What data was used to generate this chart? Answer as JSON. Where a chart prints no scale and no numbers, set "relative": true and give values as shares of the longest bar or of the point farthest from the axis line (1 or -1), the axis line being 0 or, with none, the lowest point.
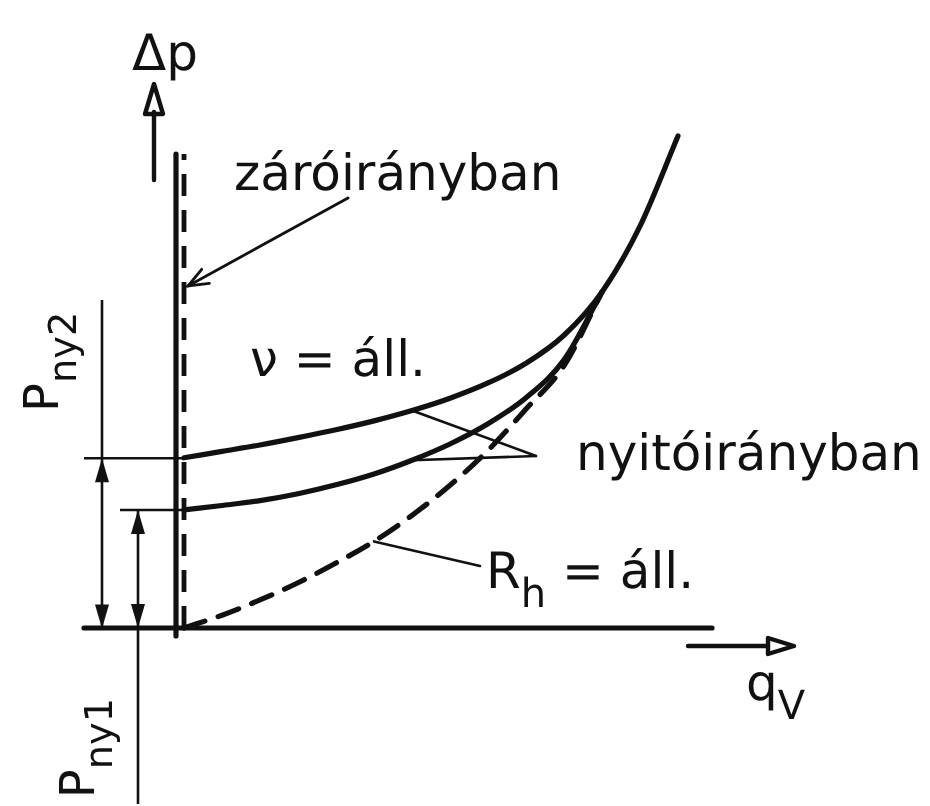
{
  "chart_data": {
    "type": "line",
    "relative": true,
    "xlabel": "q$_{V}$",
    "ylabel": "Δp",
    "marker": "none",
    "categories": [
      null,
      null,
      null,
      null,
      null,
      null,
      null,
      null,
      null,
      null,
      null,
      null,
      null,
      null
    ],
    "series": [
      {
        "color": "#111111",
        "values": [
          0.346,
          0.359,
          0.372,
          0.387,
          0.403,
          0.421,
          0.442,
          0.467,
          0.498,
          0.538,
          0.595,
          0.683,
          0.817,
          1
        ]
      },
      {
        "color": "#111111",
        "values": [
          0.24,
          0.249,
          0.259,
          0.273,
          0.291,
          0.313,
          0.341,
          0.374,
          0.415,
          0.468,
          0.545,
          0.683,
          null,
          null
        ]
      },
      {
        "color": "#111111",
        "line_style": "dashed",
        "values": [
          0,
          0.026,
          0.057,
          0.092,
          0.132,
          0.176,
          0.229,
          0.29,
          0.361,
          0.445,
          0.533,
          0.683,
          null,
          null
        ]
      }
    ],
    "annotations": [
      "záróirányban",
      "P$_{ny2}$",
      "P$_{ny1}$",
      "ν = áll.",
      "nyitóirányban",
      "R$_{h}$ = áll."
    ]
  }
}
